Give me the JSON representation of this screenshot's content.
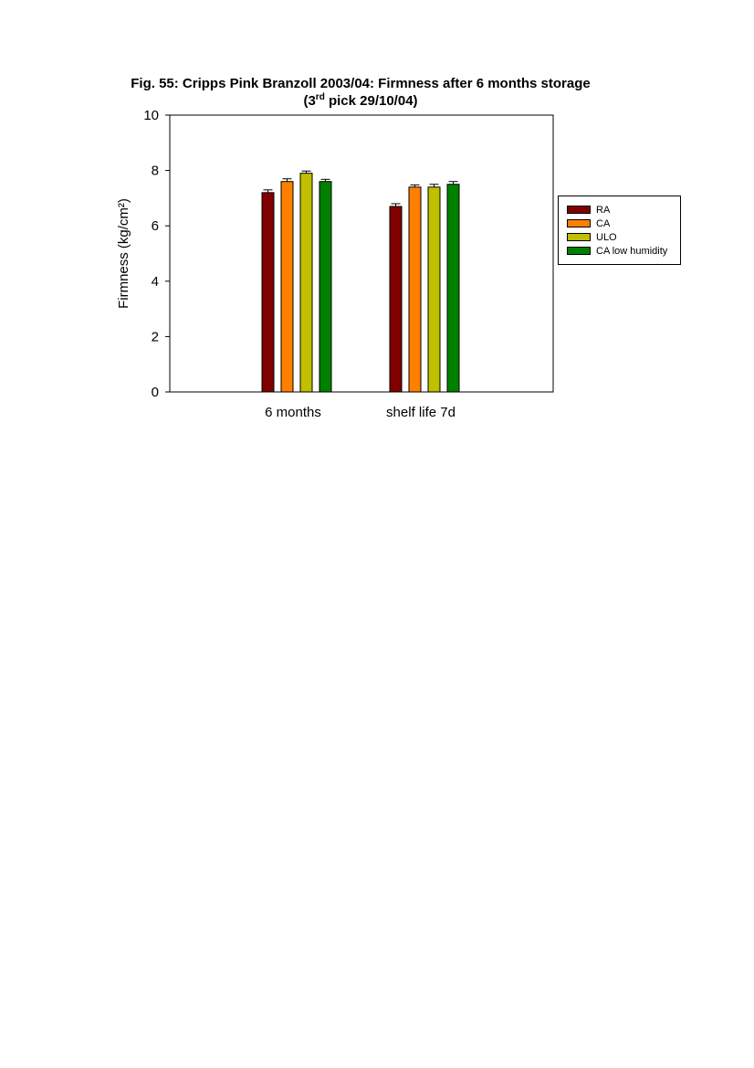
{
  "figure": {
    "title_line1": "Fig. 55: Cripps Pink Branzoll 2003/04: Firmness after 6 months storage",
    "title_line2_pre": "(3",
    "title_line2_sup": "rd",
    "title_line2_post": " pick 29/10/04)"
  },
  "chart_data": {
    "type": "bar",
    "categories": [
      "6 months",
      "shelf life 7d"
    ],
    "series": [
      {
        "name": "RA",
        "color": "#800000",
        "values": [
          7.2,
          6.7
        ],
        "errors": [
          0.1,
          0.1
        ]
      },
      {
        "name": "CA",
        "color": "#FF8000",
        "values": [
          7.6,
          7.4
        ],
        "errors": [
          0.1,
          0.08
        ]
      },
      {
        "name": "ULO",
        "color": "#C0C000",
        "values": [
          7.9,
          7.4
        ],
        "errors": [
          0.08,
          0.1
        ]
      },
      {
        "name": "CA low humidity",
        "color": "#008000",
        "values": [
          7.6,
          7.5
        ],
        "errors": [
          0.08,
          0.1
        ]
      }
    ],
    "xlabel": "",
    "ylabel": "Firmness (kg/cm²)",
    "ylim": [
      0,
      10
    ],
    "yticks": [
      0,
      2,
      4,
      6,
      8,
      10
    ],
    "grid": false,
    "legend_position": "right"
  }
}
